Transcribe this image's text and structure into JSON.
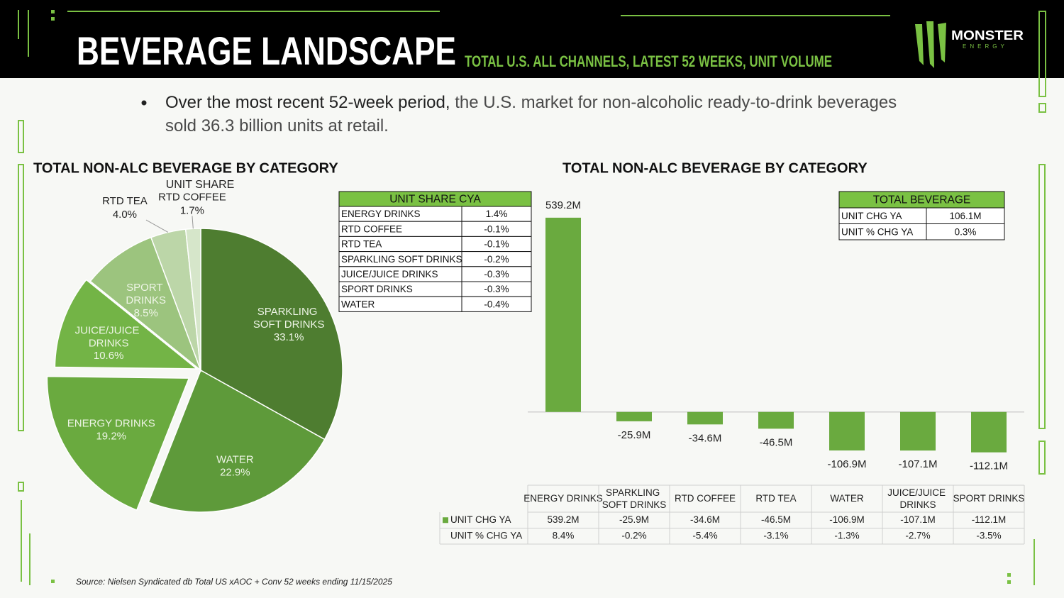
{
  "header": {
    "title": "BEVERAGE LANDSCAPE",
    "subtitle": "TOTAL U.S. ALL CHANNELS, LATEST 52 WEEKS, UNIT VOLUME",
    "logo": "MONSTER",
    "logo_sub": "ENERGY"
  },
  "bullet": {
    "lead": "Over the most recent 52-week period,",
    "text": "the U.S. market for non-alcoholic ready-to-drink beverages sold 36.3 billion units at retail."
  },
  "chart_data": [
    {
      "type": "pie",
      "title": "TOTAL NON-ALC BEVERAGE BY CATEGORY",
      "subtitle": "UNIT SHARE",
      "categories": [
        "SPARKLING SOFT DRINKS",
        "WATER",
        "ENERGY DRINKS",
        "JUICE/JUICE DRINKS",
        "SPORT DRINKS",
        "RTD TEA",
        "RTD COFFEE"
      ],
      "values": [
        33.1,
        22.9,
        19.2,
        10.6,
        8.5,
        4.0,
        1.7
      ],
      "value_labels": [
        "33.1%",
        "22.9%",
        "19.2%",
        "10.6%",
        "8.5%",
        "4.0%",
        "1.7%"
      ],
      "colors": [
        "#4e7d30",
        "#5e9a3a",
        "#6aaa3f",
        "#73b446",
        "#9cc47e",
        "#bcd6a8",
        "#d6e6ca"
      ],
      "explode": [
        0,
        0,
        0.1,
        0.03,
        0,
        0,
        0
      ]
    },
    {
      "type": "bar",
      "title": "TOTAL NON-ALC BEVERAGE BY CATEGORY",
      "categories": [
        "ENERGY DRINKS",
        "SPARKLING SOFT DRINKS",
        "RTD COFFEE",
        "RTD TEA",
        "WATER",
        "JUICE/JUICE DRINKS",
        "SPORT DRINKS"
      ],
      "series": [
        {
          "name": "UNIT CHG YA",
          "color": "#6aaa3f",
          "values": [
            539.2,
            -25.9,
            -34.6,
            -46.5,
            -106.9,
            -107.1,
            -112.1
          ],
          "value_labels": [
            "539.2M",
            "-25.9M",
            "-34.6M",
            "-46.5M",
            "-106.9M",
            "-107.1M",
            "-112.1M"
          ]
        }
      ],
      "ylim": [
        -160,
        600
      ],
      "table_rows": [
        {
          "name": "UNIT % CHG YA",
          "values": [
            "8.4%",
            "-0.2%",
            "-5.4%",
            "-3.1%",
            "-1.3%",
            "-2.7%",
            "-3.5%"
          ]
        }
      ]
    }
  ],
  "unit_share_table": {
    "title": "UNIT SHARE CYA",
    "rows": [
      [
        "ENERGY DRINKS",
        "1.4%"
      ],
      [
        "RTD COFFEE",
        "-0.1%"
      ],
      [
        "RTD TEA",
        "-0.1%"
      ],
      [
        "SPARKLING SOFT DRINKS",
        "-0.2%"
      ],
      [
        "JUICE/JUICE DRINKS",
        "-0.3%"
      ],
      [
        "SPORT DRINKS",
        "-0.3%"
      ],
      [
        "WATER",
        "-0.4%"
      ]
    ]
  },
  "total_table": {
    "title": "TOTAL BEVERAGE",
    "rows": [
      [
        "UNIT CHG YA",
        "106.1M"
      ],
      [
        "UNIT % CHG YA",
        "0.3%"
      ]
    ]
  },
  "source": "Source: Nielsen Syndicated db Total US xAOC + Conv 52 weeks ending 11/15/2025"
}
